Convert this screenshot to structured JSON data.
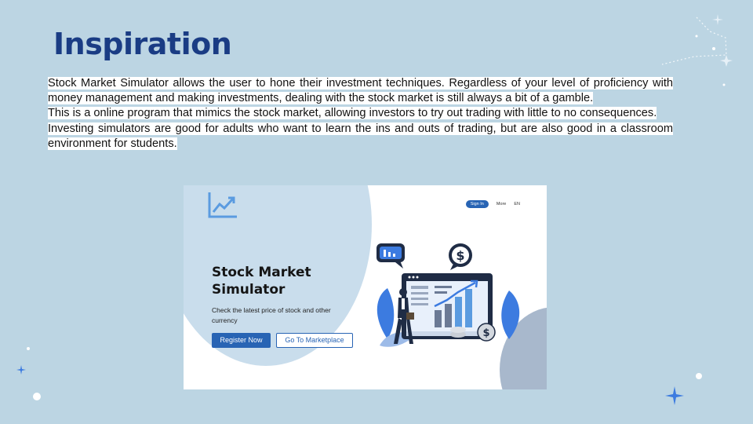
{
  "slide": {
    "title": "Inspiration",
    "paragraphs": [
      "Stock  Market Simulator allows the user to hone their investment techniques. Regardless of your level of proficiency with money management and making investments, dealing with the stock market is still always a bit of a gamble.",
      "This is a online program that mimics the stock market, allowing investors to try out trading with little to no consequences.",
      "Investing simulators are good for adults who want to learn the ins and outs of trading, but are also good in a classroom environment for students."
    ]
  },
  "mockup": {
    "nav": {
      "signin": "Sign In",
      "more": "More",
      "lang": "EN"
    },
    "hero_title": "Stock Market Simulator",
    "hero_subtitle": "Check the latest price of stock and other currency",
    "register_label": "Register Now",
    "marketplace_label": "Go To Marketplace",
    "colors": {
      "accent": "#2864b4",
      "title": "#1a3c84",
      "background": "#bcd5e3"
    }
  }
}
